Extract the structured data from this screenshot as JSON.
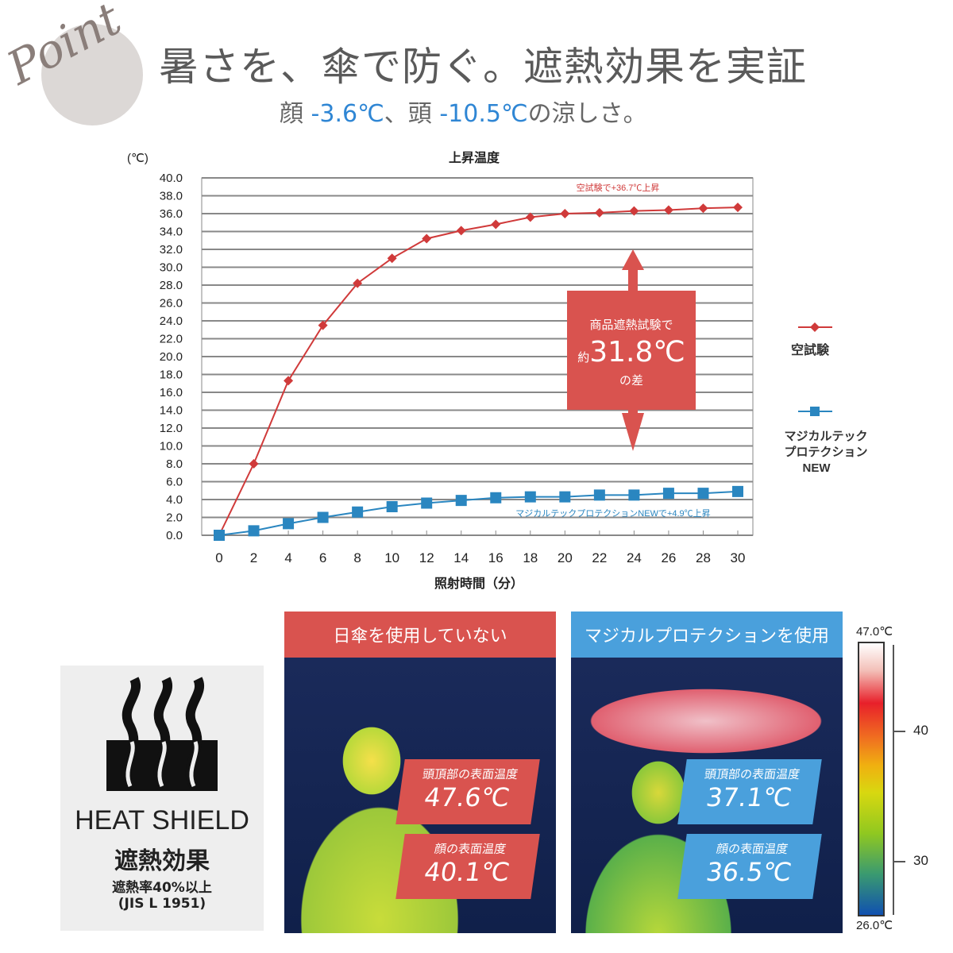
{
  "header": {
    "logo_text": "Point",
    "title": "暑さを、傘で防ぐ。遮熱効果を実証",
    "subtitle": {
      "face_label": "顔 ",
      "face_value": "-3.6℃",
      "sep": "、頭 ",
      "head_value": "-10.5℃",
      "tail": "の涼しさ。"
    }
  },
  "chart_data": {
    "type": "line",
    "title": "上昇温度",
    "xlabel": "照射時間（分）",
    "ylabel": "(℃)",
    "xlim": [
      0,
      30
    ],
    "ylim": [
      0,
      40
    ],
    "grid": true,
    "legend_placement": "right",
    "x": [
      0,
      2,
      4,
      6,
      8,
      10,
      12,
      14,
      16,
      18,
      20,
      22,
      24,
      26,
      28,
      30
    ],
    "xticks": [
      "0",
      "2",
      "4",
      "6",
      "8",
      "10",
      "12",
      "14",
      "16",
      "18",
      "20",
      "22",
      "24",
      "26",
      "28",
      "30"
    ],
    "yticks": [
      "0.0",
      "2.0",
      "4.0",
      "6.0",
      "8.0",
      "10.0",
      "12.0",
      "14.0",
      "16.0",
      "18.0",
      "20.0",
      "22.0",
      "24.0",
      "26.0",
      "28.0",
      "30.0",
      "32.0",
      "34.0",
      "36.0",
      "38.0",
      "40.0"
    ],
    "series": [
      {
        "name": "空試験",
        "color": "#d03a3a",
        "marker": "diamond",
        "values": [
          0,
          8.0,
          17.3,
          23.5,
          28.2,
          31.0,
          33.2,
          34.1,
          34.8,
          35.6,
          36.0,
          36.1,
          36.3,
          36.4,
          36.6,
          36.7
        ]
      },
      {
        "name": "マジカルテック プロテクション NEW",
        "color": "#2a86c0",
        "marker": "square",
        "values": [
          0,
          0.5,
          1.3,
          2.0,
          2.6,
          3.2,
          3.6,
          3.9,
          4.2,
          4.3,
          4.3,
          4.5,
          4.5,
          4.7,
          4.7,
          4.9
        ]
      }
    ],
    "annotations": {
      "red": "空試験で+36.7℃上昇",
      "blue": "マジカルテックプロテクションNEWで+4.9℃上昇",
      "callout": {
        "line1": "商品遮熱試験で",
        "prefix": "約",
        "value": "31.8℃",
        "line3": "の差"
      }
    },
    "legend": {
      "red": "空試験",
      "blue_lines": [
        "マジカルテック",
        "プロテクション",
        "NEW"
      ]
    }
  },
  "badge": {
    "label": "HEAT SHIELD",
    "effect": "遮熱効果",
    "rate": "遮熱率40%以上",
    "standard": "(JIS L 1951)"
  },
  "thermal": {
    "left": {
      "header": "日傘を使用していない",
      "header_color": "#d9534f",
      "head_label": "頭頂部の表面温度",
      "head_value": "47.6℃",
      "face_label": "顔の表面温度",
      "face_value": "40.1℃"
    },
    "right": {
      "header": "マジカルプロテクションを使用",
      "header_color": "#4aa0dc",
      "head_label": "頭頂部の表面温度",
      "head_value": "37.1℃",
      "face_label": "顔の表面温度",
      "face_value": "36.5℃"
    },
    "scale": {
      "max": "47.0℃",
      "min": "26.0℃",
      "tick40": "40",
      "tick30": "30"
    }
  }
}
